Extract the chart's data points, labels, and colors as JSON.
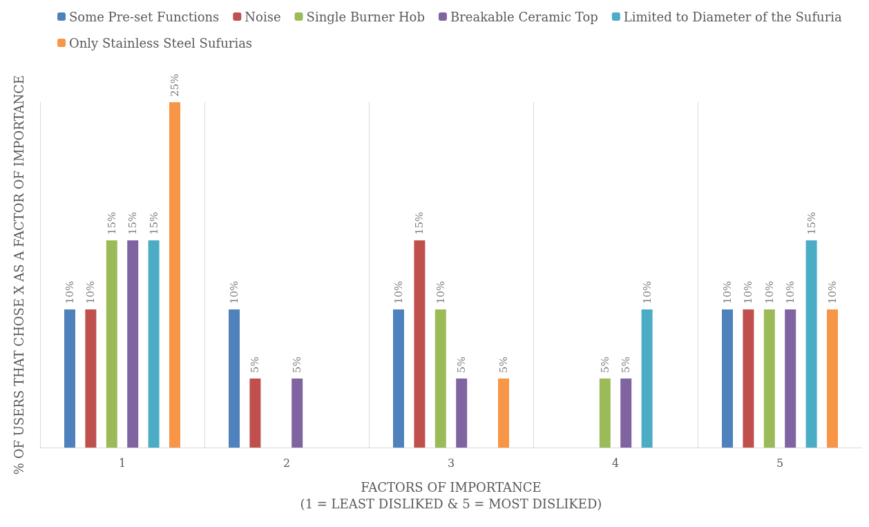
{
  "chart_data": {
    "type": "bar",
    "categories": [
      "1",
      "2",
      "3",
      "4",
      "5"
    ],
    "xlabel": "FACTORS OF IMPORTANCE\n(1 = LEAST DISLIKED & 5 = MOST DISLIKED)",
    "ylabel": "% OF USERS THAT CHOSE X AS A FACTOR OF IMPORTANCE",
    "series": [
      {
        "name": "Some Pre-set Functions",
        "color": "#4f81bd",
        "values": [
          10,
          10,
          10,
          null,
          10
        ],
        "value_labels": [
          "10%",
          "10%",
          "10%",
          null,
          "10%"
        ]
      },
      {
        "name": "Noise",
        "color": "#c0504d",
        "values": [
          10,
          5,
          15,
          null,
          10
        ],
        "value_labels": [
          "10%",
          "5%",
          "15%",
          null,
          "10%"
        ]
      },
      {
        "name": "Single Burner Hob",
        "color": "#9bbb59",
        "values": [
          15,
          null,
          10,
          5,
          10
        ],
        "value_labels": [
          "15%",
          null,
          "10%",
          "5%",
          "10%"
        ]
      },
      {
        "name": "Breakable Ceramic Top",
        "color": "#8064a2",
        "values": [
          15,
          5,
          5,
          5,
          10
        ],
        "value_labels": [
          "15%",
          "5%",
          "5%",
          "5%",
          "10%"
        ]
      },
      {
        "name": "Limited to Diameter of the Sufuria",
        "color": "#4bacc6",
        "values": [
          15,
          null,
          null,
          10,
          15
        ],
        "value_labels": [
          "15%",
          null,
          null,
          "10%",
          "15%"
        ]
      },
      {
        "name": "Only Stainless Steel Sufurias",
        "color": "#f79646",
        "values": [
          25,
          null,
          5,
          null,
          10
        ],
        "value_labels": [
          "25%",
          null,
          "5%",
          null,
          "10%"
        ]
      }
    ],
    "grid": "x",
    "legend": "top",
    "tick_labels": "x"
  }
}
